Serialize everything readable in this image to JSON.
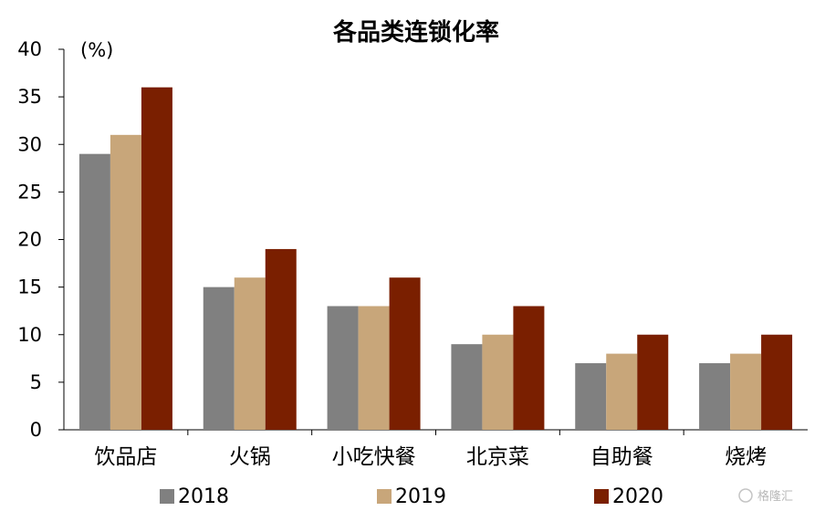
{
  "chart_data": {
    "type": "bar",
    "title": "各品类连锁化率",
    "unit_label": "(%)",
    "categories": [
      "饮品店",
      "火锅",
      "小吃快餐",
      "北京菜",
      "自助餐",
      "烧烤"
    ],
    "series": [
      {
        "name": "2018",
        "color": "#808080",
        "values": [
          29,
          15,
          13,
          9,
          7,
          7
        ]
      },
      {
        "name": "2019",
        "color": "#c8a67a",
        "values": [
          31,
          16,
          13,
          10,
          8,
          8
        ]
      },
      {
        "name": "2020",
        "color": "#7a1f00",
        "values": [
          36,
          19,
          16,
          13,
          10,
          10
        ]
      }
    ],
    "ylim": [
      0,
      40
    ],
    "yticks": [
      0,
      5,
      10,
      15,
      20,
      25,
      30,
      35,
      40
    ],
    "legend_position": "bottom",
    "grid": false
  },
  "watermark": "格隆汇"
}
